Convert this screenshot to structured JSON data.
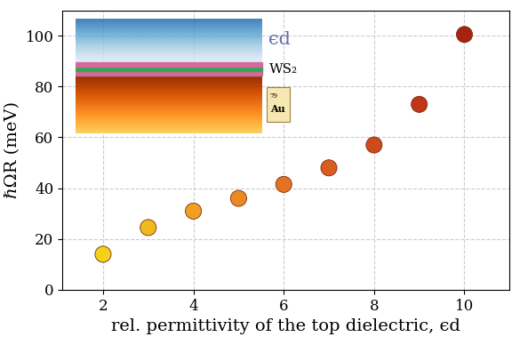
{
  "chart_data": {
    "type": "scatter",
    "x": [
      2,
      3,
      4,
      5,
      6,
      7,
      8,
      9,
      10
    ],
    "values": [
      14,
      24.5,
      31,
      36,
      41.5,
      48,
      57,
      73,
      100.5
    ],
    "colors": [
      "#f2d21b",
      "#f2b91e",
      "#efa020",
      "#ea8a22",
      "#e27322",
      "#d95d20",
      "#cc4a1c",
      "#bf3518",
      "#a82212"
    ],
    "marker": "o",
    "x_label": "rel. permittivity of the top dielectric, ϵd",
    "y_label": "ℏΩR (meV)",
    "xlim": [
      1.1,
      11
    ],
    "xticks": [
      2,
      4,
      6,
      8,
      10
    ],
    "ylim": [
      0,
      110
    ],
    "yticks": [
      0,
      20,
      40,
      60,
      80,
      100
    ],
    "grid": true,
    "annotations": [
      "ϵd",
      "WS₂",
      "79",
      "Au"
    ]
  }
}
